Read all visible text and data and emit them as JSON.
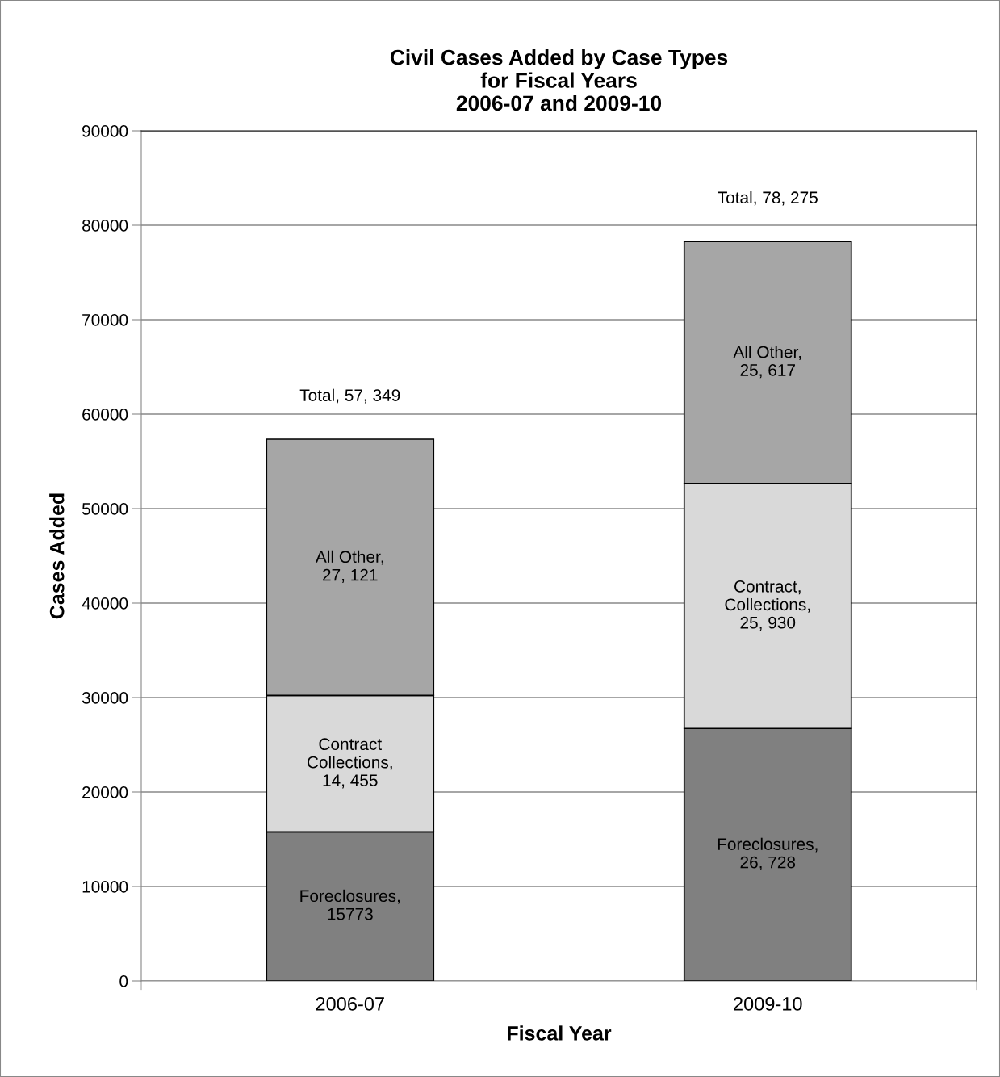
{
  "chart_data": {
    "type": "bar",
    "title": "Civil Cases Added by Case Types\nfor Fiscal Years\n2006-07 and 2009-10",
    "xlabel": "Fiscal Year",
    "ylabel": "Cases Added",
    "categories": [
      "2006-07",
      "2009-10"
    ],
    "stacked": true,
    "series": [
      {
        "color": "#808080",
        "values": [
          15773,
          26728
        ],
        "value_labels": [
          "Foreclosures,\n15773",
          "Foreclosures,\n26, 728"
        ]
      },
      {
        "color": "#d9d9d9",
        "values": [
          14455,
          25930
        ],
        "value_labels": [
          "Contract\nCollections,\n14, 455",
          "Contract,\nCollections,\n25, 930"
        ]
      },
      {
        "color": "#a6a6a6",
        "values": [
          27121,
          25617
        ],
        "value_labels": [
          "All Other,\n27, 121",
          "All Other,\n25, 617"
        ]
      }
    ],
    "totals": [
      "Total, 57, 349",
      "Total, 78, 275"
    ],
    "ylim": [
      0,
      90000
    ],
    "yticks": [
      0,
      10000,
      20000,
      30000,
      40000,
      50000,
      60000,
      70000,
      80000,
      90000
    ],
    "grid": "y",
    "legend": false
  }
}
